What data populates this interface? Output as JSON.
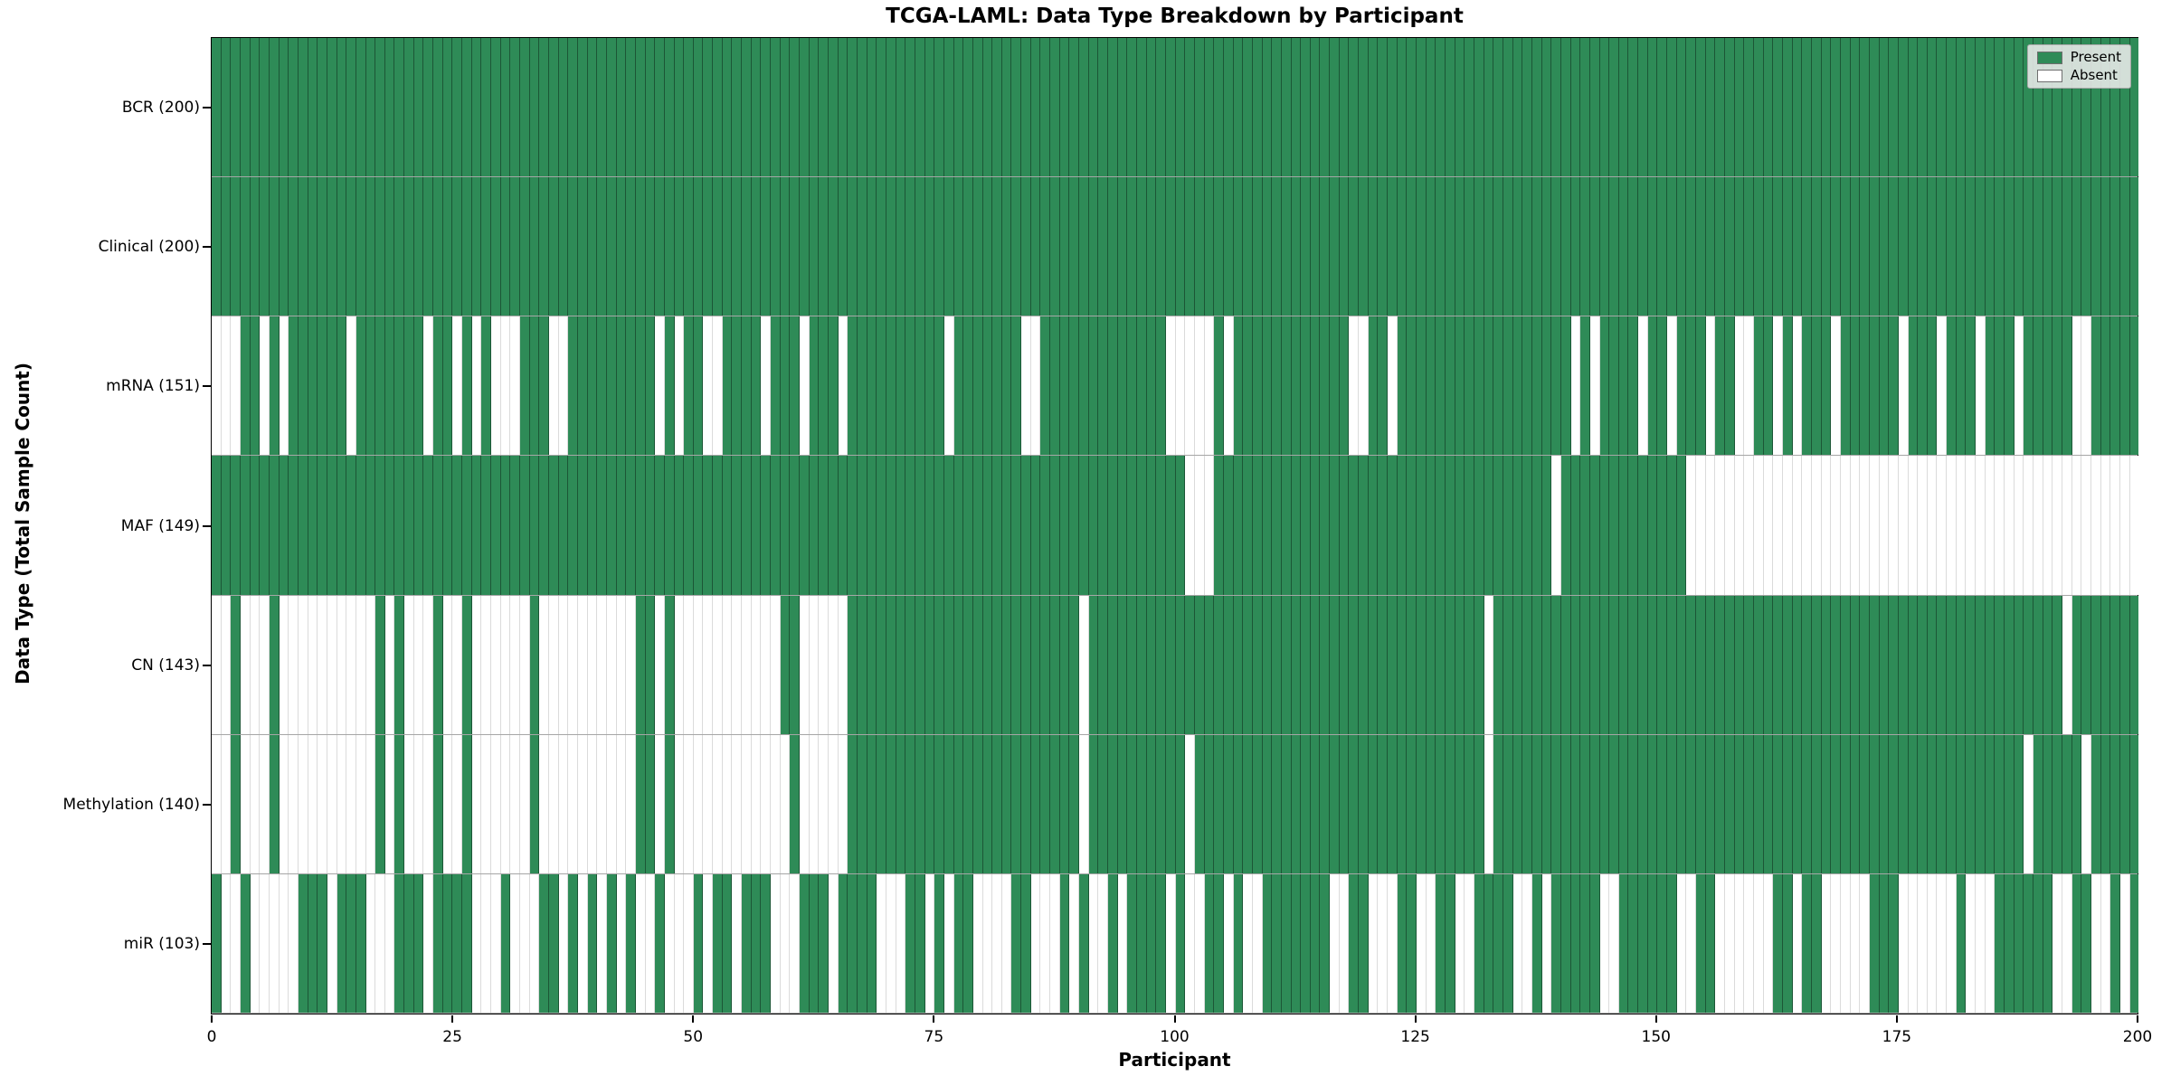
{
  "legend": {
    "present_label": "Present",
    "absent_label": "Absent"
  },
  "colors": {
    "present": "#2e8b57",
    "absent": "#ffffff",
    "cell_edge": "rgba(0,0,0,0.3)",
    "axis": "#000000",
    "legend_bg": "#eaeaea"
  },
  "chart_data": {
    "type": "heatmap",
    "title": "TCGA-LAML: Data Type Breakdown by Participant",
    "xlabel": "Participant",
    "ylabel": "Data Type (Total Sample Count)",
    "x_ticks": [
      0,
      25,
      50,
      75,
      100,
      125,
      150,
      175,
      200
    ],
    "x_range": [
      0,
      200
    ],
    "n_participants": 200,
    "grid": false,
    "legend_entries": [
      "Present",
      "Absent"
    ],
    "legend_position": "upper right",
    "encoding": "pattern = 200 chars, one per participant left-to-right: 1=Present (green), 0=Absent (white)",
    "rows": [
      {
        "name": "BCR",
        "label": "BCR (200)",
        "total": 200,
        "pattern": "11111111111111111111111111111111111111111111111111111111111111111111111111111111111111111111111111111111111111111111111111111111111111111111111111111111111111111111111111111111111111111111111111111111"
      },
      {
        "name": "Clinical",
        "label": "Clinical (200)",
        "total": 200,
        "pattern": "11111111111111111111111111111111111111111111111111111111111111111111111111111111111111111111111111111111111111111111111111111111111111111111111111111111111111111111111111111111111111111111111111111111"
      },
      {
        "name": "mRNA",
        "label": "mRNA (151)",
        "total": 151,
        "pattern": "00011010111111011111110110101000111001111111110101100111101110111011111111110111111100111111111111100000101111111111110011011111111111111111101011110110111011001101011101111110111011101110111110011111"
      },
      {
        "name": "MAF",
        "label": "MAF (149)",
        "total": 149,
        "pattern": "11111111111111111111111111111111111111111111111111111111111111111111111111111111111111111111111111111000111111111111111111111111111111111110111111111111100000000000000000000000000000000000000000000000"
      },
      {
        "name": "CN",
        "label": "CN (143)",
        "total": 143,
        "pattern": "00100010000000000101000100100000010000000000110100000000000110000011111111111111111111111101111111111111111111111111111111111111111101111111111111111111111111111111111111111111111111111111111101111111"
      },
      {
        "name": "Methylation",
        "label": "Methylation (140)",
        "total": 140,
        "pattern": "00100010000000000101000100100000010000000000110100000000000010000011111111111111111111111101111111111011111111111111111111111111111101111111111111111111111111111111111111111111111111111111011111011111"
      },
      {
        "name": "miR",
        "label": "miR (103)",
        "total": 103,
        "pattern": "10010000011101110001110111100010001101010101001000101101110001110111100011010110000110001010010111101001101001111111001100011001100111100101111100111111001100000011011000001110000001000111111001100101"
      }
    ]
  }
}
